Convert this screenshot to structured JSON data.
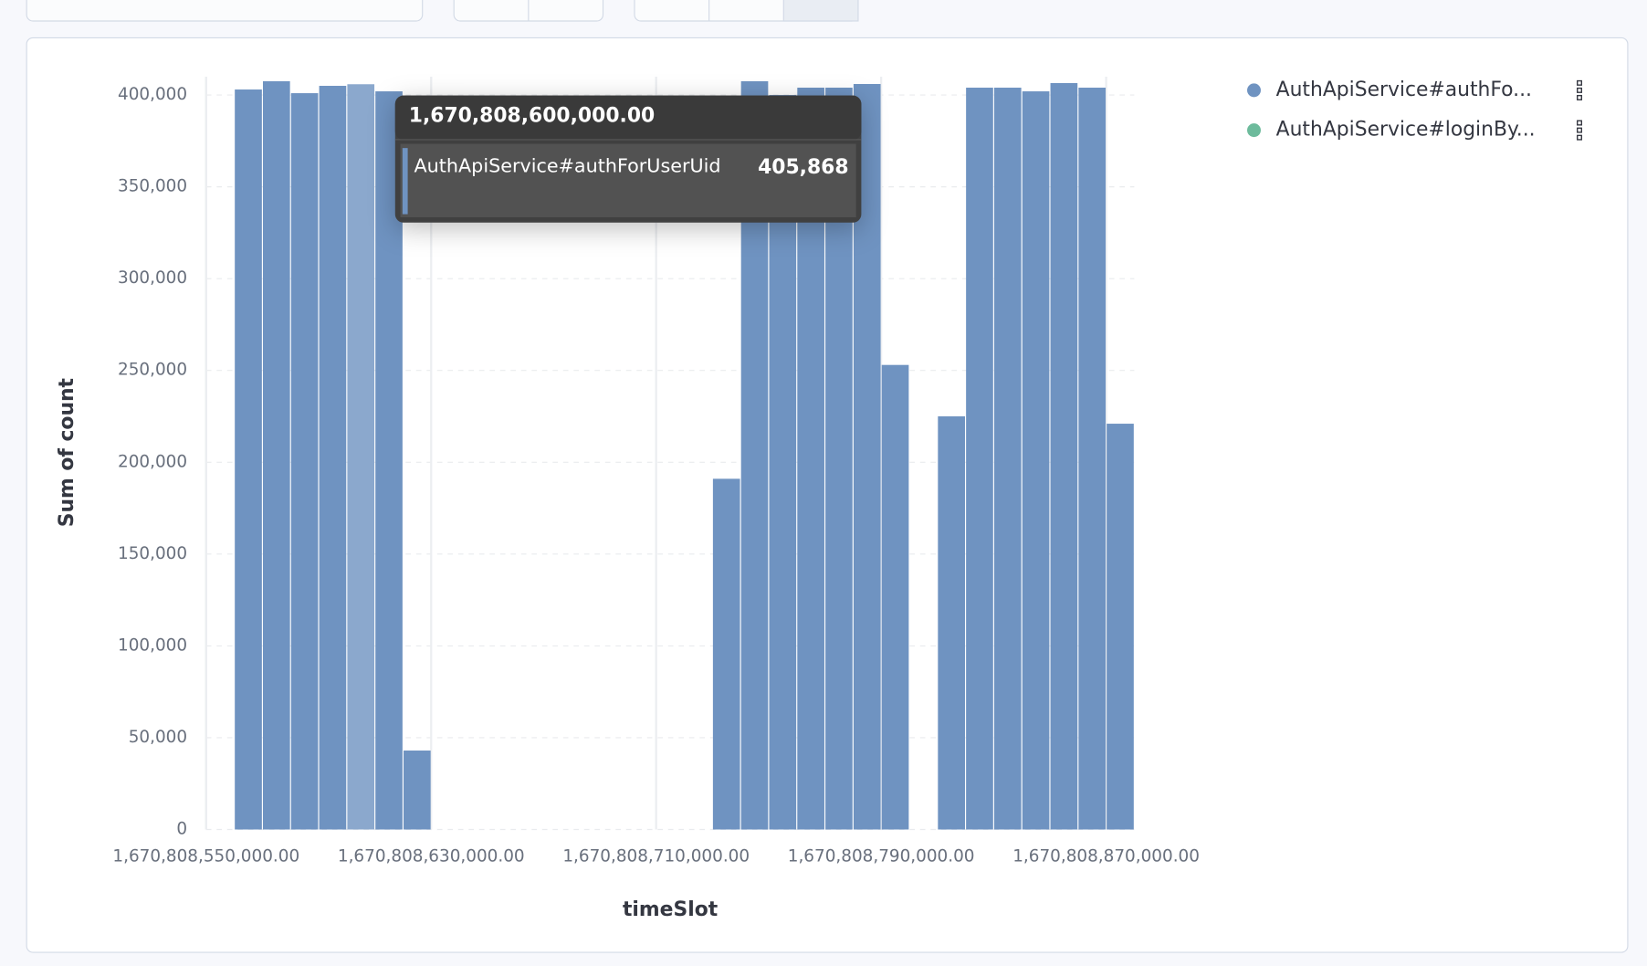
{
  "chart_data": {
    "type": "histogram",
    "xlabel": "timeSlot",
    "ylabel": "Sum of count",
    "bins": [
      1670808560000,
      1670808570000,
      1670808580000,
      1670808590000,
      1670808600000,
      1670808610000,
      1670808620000,
      1670808630000,
      1670808640000,
      1670808650000,
      1670808660000,
      1670808670000,
      1670808680000,
      1670808690000,
      1670808700000,
      1670808710000,
      1670808720000,
      1670808730000,
      1670808740000,
      1670808750000,
      1670808760000,
      1670808770000,
      1670808780000,
      1670808790000,
      1670808800000,
      1670808810000,
      1670808820000,
      1670808830000,
      1670808840000,
      1670808850000,
      1670808860000,
      1670808870000,
      1670808880000
    ],
    "counts": [
      403000,
      407500,
      401000,
      405000,
      405868,
      402000,
      43000,
      0,
      0,
      0,
      0,
      0,
      0,
      0,
      0,
      0,
      0,
      191000,
      407500,
      400000,
      404000,
      404000,
      406000,
      253000,
      0,
      225000,
      404000,
      404000,
      402000,
      406500,
      404000,
      221000
    ],
    "color": "#6f93c1",
    "highlight_color": "#8ba8cd",
    "xlim": [
      1670808550000,
      1670808880000
    ],
    "ylim": [
      0,
      410000
    ],
    "xticks": [
      {
        "value": 1670808550000,
        "label": "1,670,808,550,000.00"
      },
      {
        "value": 1670808630000,
        "label": "1,670,808,630,000.00"
      },
      {
        "value": 1670808710000,
        "label": "1,670,808,710,000.00"
      },
      {
        "value": 1670808790000,
        "label": "1,670,808,790,000.00"
      },
      {
        "value": 1670808870000,
        "label": "1,670,808,870,000.00"
      }
    ],
    "yticks": [
      0,
      {
        "value": 50000,
        "label": "50,000"
      },
      {
        "value": 100000,
        "label": "100,000"
      },
      {
        "value": 150000,
        "label": "150,000"
      },
      {
        "value": 200000,
        "label": "200,000"
      },
      {
        "value": 250000,
        "label": "250,000"
      },
      {
        "value": 300000,
        "label": "300,000"
      },
      {
        "value": 350000,
        "label": "350,000"
      },
      {
        "value": 400000,
        "label": "400,000"
      }
    ],
    "grid": true,
    "legend": [
      {
        "name": "AuthApiService#authFo...",
        "color": "#6f93c1"
      },
      {
        "name": "AuthApiService#loginBy...",
        "color": "#6dbb9c"
      }
    ],
    "tooltip": {
      "x": {
        "value": 1670808600000,
        "label": "1,670,808,600,000.00"
      },
      "series": "AuthApiService#authForUserUid",
      "value": {
        "value": 405868,
        "label": "405,868"
      }
    }
  }
}
